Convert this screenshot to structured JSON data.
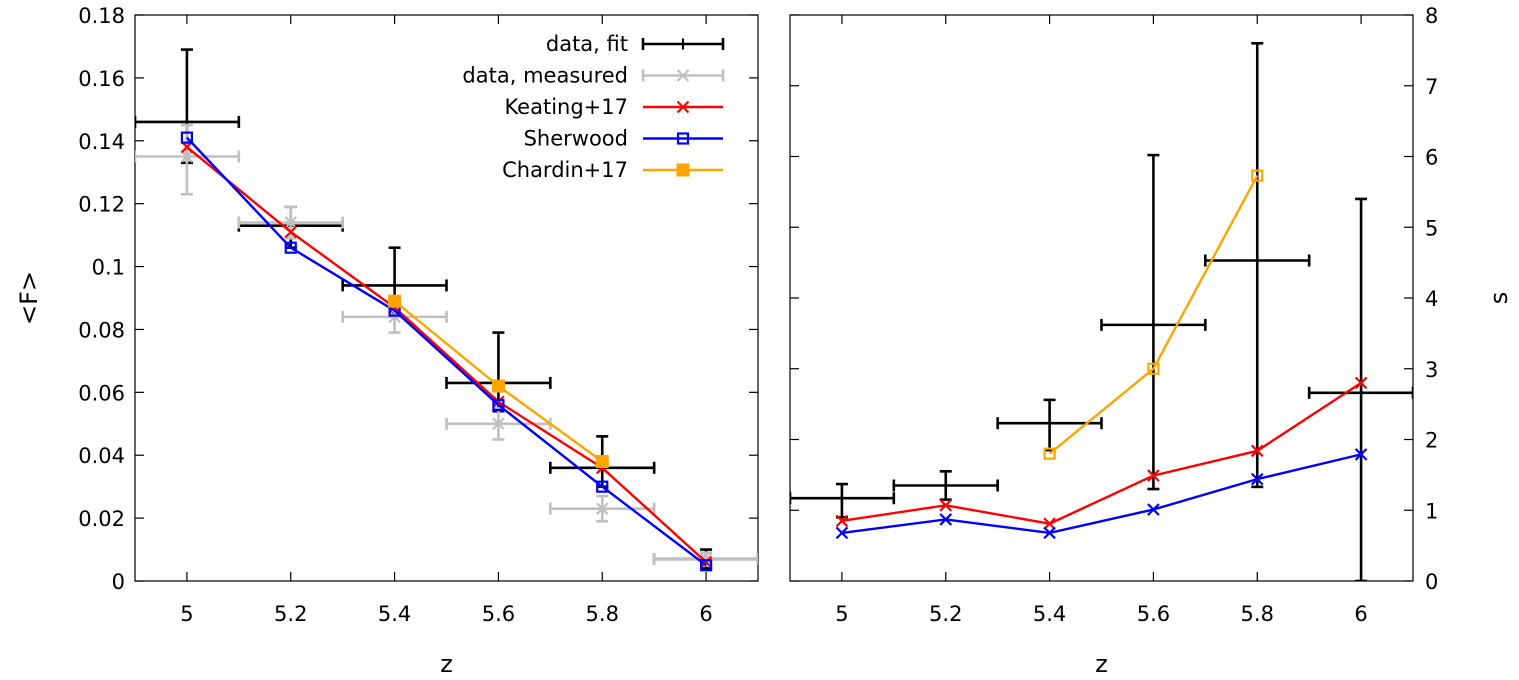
{
  "chart_data": [
    {
      "type": "line",
      "xlabel": "z",
      "ylabel": "<F>",
      "xlim": [
        4.9,
        6.1
      ],
      "ylim": [
        0,
        0.18
      ],
      "xticks": [
        "5",
        "5.2",
        "5.4",
        "5.6",
        "5.8",
        "6"
      ],
      "yticks": [
        "0",
        "0.02",
        "0.04",
        "0.06",
        "0.08",
        "0.1",
        "0.12",
        "0.14",
        "0.16",
        "0.18"
      ],
      "grid": false,
      "legend_position": "top-right",
      "series": [
        {
          "name": "data, fit",
          "color": "#000000",
          "marker": "plus",
          "connect": false,
          "x": [
            5.0,
            5.2,
            5.4,
            5.6,
            5.8,
            6.0
          ],
          "y": [
            0.146,
            0.113,
            0.094,
            0.063,
            0.036,
            0.007
          ],
          "xerr": [
            0.1,
            0.1,
            0.1,
            0.1,
            0.1,
            0.1
          ],
          "yerr_low": [
            0.013,
            0.007,
            0.009,
            0.009,
            0.006,
            0.003
          ],
          "yerr_high": [
            0.023,
            0.006,
            0.012,
            0.016,
            0.01,
            0.003
          ]
        },
        {
          "name": "data, measured",
          "color": "#c0c0c0",
          "marker": "cross",
          "connect": false,
          "x": [
            5.0,
            5.2,
            5.4,
            5.6,
            5.8,
            6.0
          ],
          "y": [
            0.135,
            0.114,
            0.084,
            0.05,
            0.023,
            0.007
          ],
          "xerr": [
            0.1,
            0.1,
            0.1,
            0.1,
            0.1,
            0.1
          ],
          "yerr_low": [
            0.012,
            0.005,
            0.005,
            0.005,
            0.004,
            0.002
          ],
          "yerr_high": [
            0.01,
            0.005,
            0.005,
            0.005,
            0.004,
            0.002
          ]
        },
        {
          "name": "Keating+17",
          "color": "#ff0000",
          "marker": "x",
          "connect": true,
          "x": [
            5.0,
            5.2,
            5.4,
            5.6,
            5.8,
            6.0
          ],
          "y": [
            0.138,
            0.111,
            0.087,
            0.057,
            0.036,
            0.006
          ]
        },
        {
          "name": "Sherwood",
          "color": "#0000ff",
          "marker": "square-open",
          "connect": true,
          "x": [
            5.0,
            5.2,
            5.4,
            5.6,
            5.8,
            6.0
          ],
          "y": [
            0.141,
            0.106,
            0.086,
            0.056,
            0.03,
            0.005
          ]
        },
        {
          "name": "Chardin+17",
          "color": "#ffa500",
          "marker": "square-filled",
          "connect": true,
          "x": [
            5.4,
            5.6,
            5.8
          ],
          "y": [
            0.089,
            0.062,
            0.038
          ]
        }
      ]
    },
    {
      "type": "line",
      "xlabel": "z",
      "ylabel": "s",
      "xlim": [
        4.9,
        6.1
      ],
      "ylim": [
        0,
        8
      ],
      "xticks": [
        "5",
        "5.2",
        "5.4",
        "5.6",
        "5.8",
        "6"
      ],
      "yticks": [
        "0",
        "1",
        "2",
        "3",
        "4",
        "5",
        "6",
        "7",
        "8"
      ],
      "grid": false,
      "series": [
        {
          "color": "#000000",
          "marker": "plus",
          "connect": false,
          "x": [
            5.0,
            5.2,
            5.4,
            5.6,
            5.8,
            6.0
          ],
          "y": [
            1.17,
            1.35,
            2.23,
            3.62,
            4.53,
            2.66
          ],
          "xerr": [
            0.1,
            0.1,
            0.1,
            0.1,
            0.1,
            0.1
          ],
          "yerr_low": [
            0.27,
            0.2,
            0.38,
            2.32,
            3.2,
            2.66
          ],
          "yerr_high": [
            0.2,
            0.2,
            0.33,
            2.4,
            3.07,
            2.74
          ]
        },
        {
          "color": "#ff0000",
          "marker": "x",
          "connect": true,
          "x": [
            5.0,
            5.2,
            5.4,
            5.6,
            5.8,
            6.0
          ],
          "y": [
            0.85,
            1.07,
            0.81,
            1.49,
            1.84,
            2.8
          ]
        },
        {
          "color": "#0000ff",
          "marker": "x",
          "connect": true,
          "x": [
            5.0,
            5.2,
            5.4,
            5.6,
            5.8,
            6.0
          ],
          "y": [
            0.68,
            0.87,
            0.68,
            1.01,
            1.44,
            1.79
          ]
        },
        {
          "color": "#ffa500",
          "marker": "square-open",
          "connect": true,
          "x": [
            5.4,
            5.6,
            5.8
          ],
          "y": [
            1.8,
            3.0,
            5.73
          ]
        }
      ]
    }
  ]
}
